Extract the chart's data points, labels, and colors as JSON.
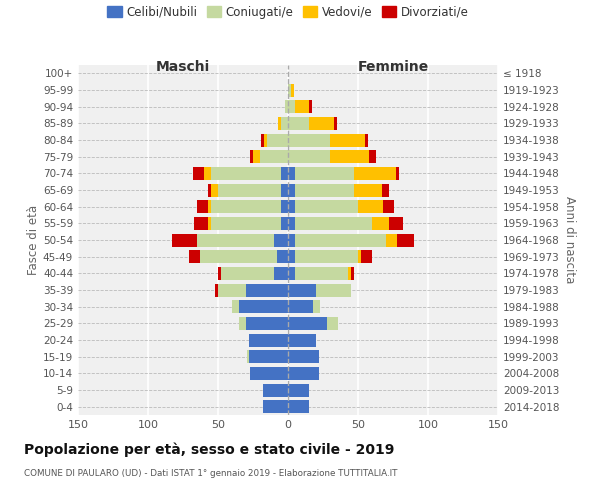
{
  "age_groups": [
    "0-4",
    "5-9",
    "10-14",
    "15-19",
    "20-24",
    "25-29",
    "30-34",
    "35-39",
    "40-44",
    "45-49",
    "50-54",
    "55-59",
    "60-64",
    "65-69",
    "70-74",
    "75-79",
    "80-84",
    "85-89",
    "90-94",
    "95-99",
    "100+"
  ],
  "birth_years": [
    "2014-2018",
    "2009-2013",
    "2004-2008",
    "1999-2003",
    "1994-1998",
    "1989-1993",
    "1984-1988",
    "1979-1983",
    "1974-1978",
    "1969-1973",
    "1964-1968",
    "1959-1963",
    "1954-1958",
    "1949-1953",
    "1944-1948",
    "1939-1943",
    "1934-1938",
    "1929-1933",
    "1924-1928",
    "1919-1923",
    "≤ 1918"
  ],
  "male": {
    "celibi": [
      18,
      18,
      27,
      28,
      28,
      30,
      35,
      30,
      10,
      8,
      10,
      5,
      5,
      5,
      5,
      0,
      0,
      0,
      0,
      0,
      0
    ],
    "coniugati": [
      0,
      0,
      0,
      1,
      0,
      5,
      5,
      20,
      38,
      55,
      55,
      50,
      50,
      45,
      50,
      20,
      15,
      5,
      2,
      0,
      0
    ],
    "vedovi": [
      0,
      0,
      0,
      0,
      0,
      0,
      0,
      0,
      0,
      0,
      0,
      2,
      2,
      5,
      5,
      5,
      2,
      2,
      0,
      0,
      0
    ],
    "divorziati": [
      0,
      0,
      0,
      0,
      0,
      0,
      0,
      2,
      2,
      8,
      18,
      10,
      8,
      2,
      8,
      2,
      2,
      0,
      0,
      0,
      0
    ]
  },
  "female": {
    "nubili": [
      15,
      15,
      22,
      22,
      20,
      28,
      18,
      20,
      5,
      5,
      5,
      5,
      5,
      5,
      5,
      0,
      0,
      0,
      0,
      0,
      0
    ],
    "coniugate": [
      0,
      0,
      0,
      0,
      0,
      8,
      5,
      25,
      38,
      45,
      65,
      55,
      45,
      42,
      42,
      30,
      30,
      15,
      5,
      2,
      0
    ],
    "vedove": [
      0,
      0,
      0,
      0,
      0,
      0,
      0,
      0,
      2,
      2,
      8,
      12,
      18,
      20,
      30,
      28,
      25,
      18,
      10,
      2,
      0
    ],
    "divorziate": [
      0,
      0,
      0,
      0,
      0,
      0,
      0,
      0,
      2,
      8,
      12,
      10,
      8,
      5,
      2,
      5,
      2,
      2,
      2,
      0,
      0
    ]
  },
  "colors": {
    "celibi": "#4472c4",
    "coniugati": "#c5d9a0",
    "vedovi": "#ffc000",
    "divorziati": "#cc0000"
  },
  "legend_labels": [
    "Celibi/Nubili",
    "Coniugati/e",
    "Vedovi/e",
    "Divorziati/e"
  ],
  "title": "Popolazione per età, sesso e stato civile - 2019",
  "subtitle": "COMUNE DI PAULARO (UD) - Dati ISTAT 1° gennaio 2019 - Elaborazione TUTTITALIA.IT",
  "ylabel_left": "Fasce di età",
  "ylabel_right": "Anni di nascita",
  "xlabel_left": "Maschi",
  "xlabel_right": "Femmine",
  "xlim": 150,
  "bg_color": "#f0f0f0"
}
